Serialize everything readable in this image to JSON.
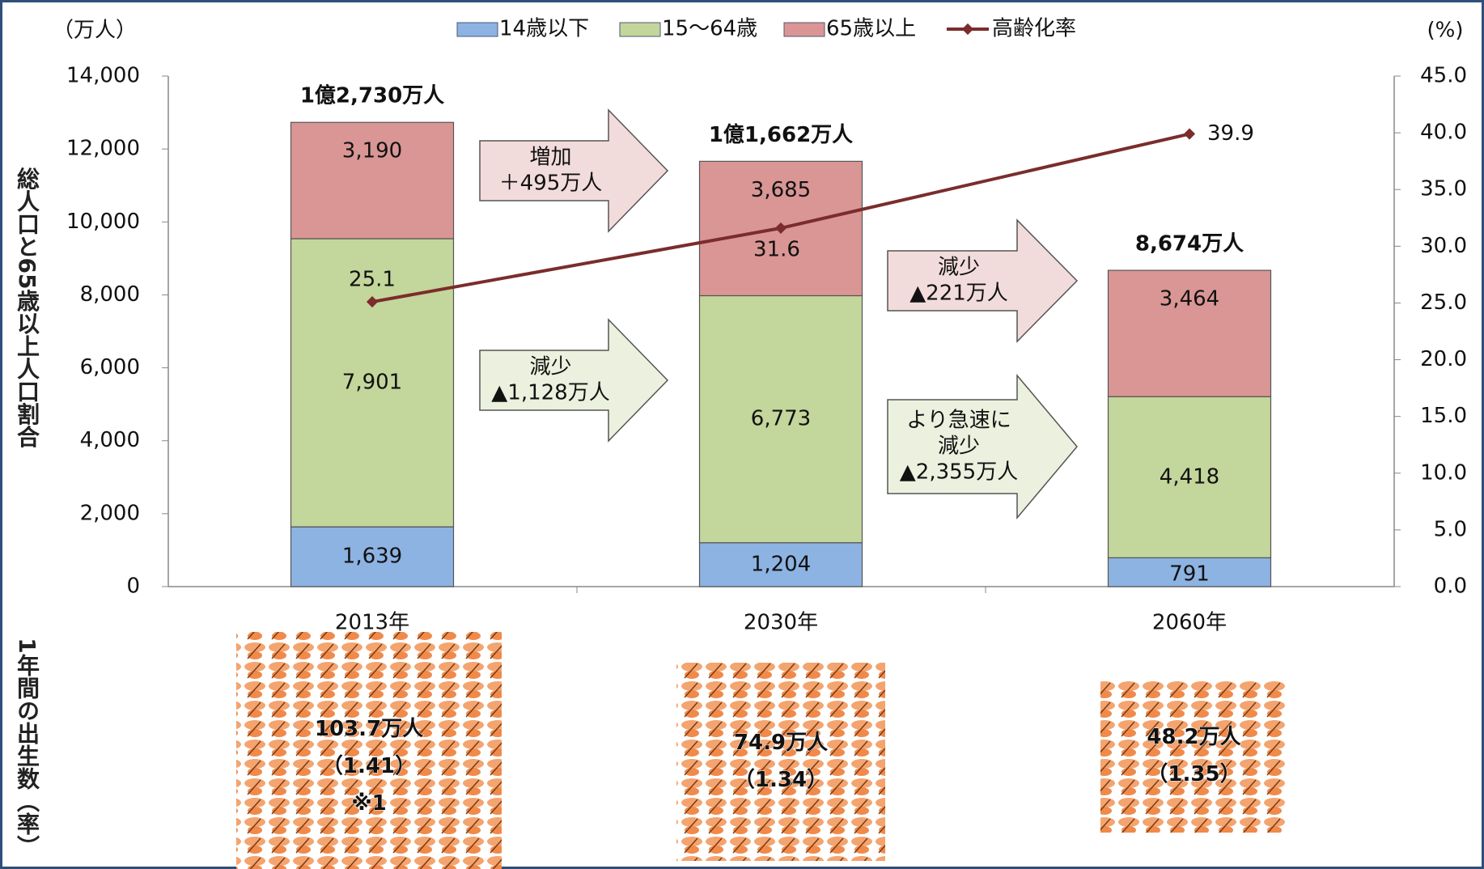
{
  "chart_data": {
    "type": "bar",
    "stacked": true,
    "categories": [
      "2013年",
      "2030年",
      "2060年"
    ],
    "series": [
      {
        "name": "14歳以下",
        "color": "#8db3e2",
        "values": [
          1639,
          1204,
          791
        ],
        "value_labels": [
          "1,639",
          "1,204",
          "791"
        ]
      },
      {
        "name": "15～64歳",
        "color": "#c3d69b",
        "values": [
          7901,
          6773,
          4418
        ],
        "value_labels": [
          "7,901",
          "6,773",
          "4,418"
        ]
      },
      {
        "name": "65歳以上",
        "color": "#d99694",
        "values": [
          3190,
          3685,
          3464
        ],
        "value_labels": [
          "3,190",
          "3,685",
          "3,464"
        ]
      },
      {
        "name": "高齢化率",
        "type": "line",
        "axis": "y2",
        "color": "#7b2c2c",
        "values": [
          25.1,
          31.6,
          39.9
        ]
      }
    ],
    "total_labels": [
      "1億2,730万人",
      "1億1,662万人",
      "8,674万人"
    ],
    "y_label": "総人口と65歳以上人口割合",
    "y_unit": "（万人）",
    "y2_unit": "(%)",
    "ylim": [
      0,
      14000
    ],
    "yticks": [
      0,
      {
        "value": 2000,
        "label": "2,000"
      },
      {
        "value": 4000,
        "label": "4,000"
      },
      {
        "value": 6000,
        "label": "6,000"
      },
      {
        "value": 8000,
        "label": "8,000"
      },
      {
        "value": 10000,
        "label": "10,000"
      },
      {
        "value": 12000,
        "label": "12,000"
      },
      {
        "value": 14000,
        "label": "14,000"
      }
    ],
    "y2lim": [
      0,
      45
    ],
    "y2ticks": [
      {
        "value": 0,
        "label": "0.0"
      },
      {
        "value": 5,
        "label": "5.0"
      },
      {
        "value": 10,
        "label": "10.0"
      },
      {
        "value": 15,
        "label": "15.0"
      },
      {
        "value": 20,
        "label": "20.0"
      },
      {
        "value": 25,
        "label": "25.0"
      },
      {
        "value": 30,
        "label": "30.0"
      },
      {
        "value": 35,
        "label": "35.0"
      },
      {
        "value": 40,
        "label": "40.0"
      },
      {
        "value": 45,
        "label": "45.0"
      }
    ],
    "legend": "top",
    "annotations": [
      {
        "lines": [
          "増加",
          "＋495万人"
        ]
      },
      {
        "lines": [
          "減少",
          "▲1,128万人"
        ]
      },
      {
        "lines": [
          "減少",
          "▲221万人"
        ]
      },
      {
        "lines": [
          "より急速に",
          "減少",
          "▲2,355万人"
        ]
      }
    ],
    "births": {
      "label": "1年間の出生数（率）",
      "items": [
        {
          "lines": [
            "103.7万人",
            "（1.41）",
            "※1"
          ]
        },
        {
          "lines": [
            "74.9万人",
            "（1.34）"
          ]
        },
        {
          "lines": [
            "48.2万人",
            "（1.35）"
          ]
        }
      ]
    }
  }
}
